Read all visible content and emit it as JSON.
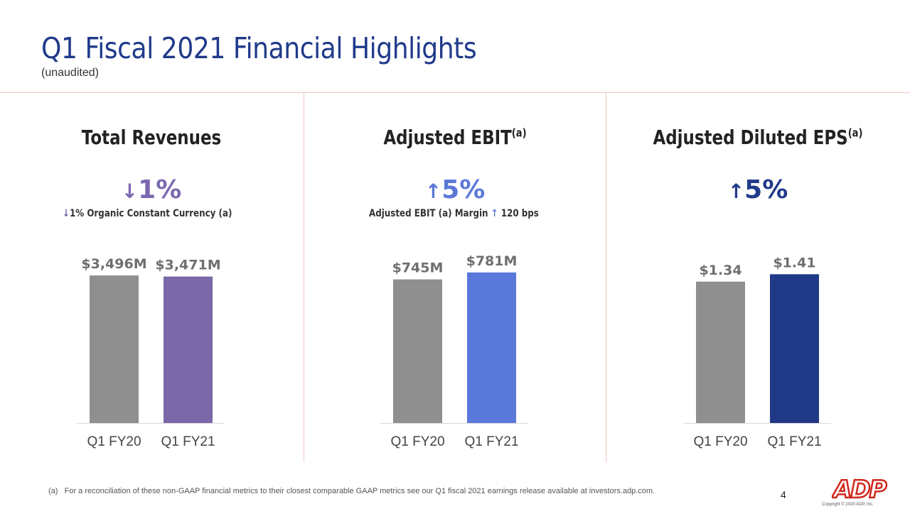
{
  "header": {
    "title": "Q1 Fiscal 2021 Financial Highlights",
    "subtitle": "(unaudited)"
  },
  "panels": [
    {
      "title": "Total Revenues",
      "title_sup": "",
      "growth_arrow": "↓",
      "growth_value": "1%",
      "growth_color": "#7b68b0",
      "note_arrow": "↓",
      "note_text": "1% Organic Constant Currency (a)"
    },
    {
      "title": "Adjusted EBIT",
      "title_sup": "(a)",
      "growth_arrow": "↑",
      "growth_value": "5%",
      "growth_color": "#5b78d8",
      "note_text_before": "Adjusted EBIT (a) Margin",
      "note_arrow": "↑",
      "note_text_after": "120 bps"
    },
    {
      "title": "Adjusted Diluted EPS",
      "title_sup": "(a)",
      "growth_arrow": "↑",
      "growth_value": "5%",
      "growth_color": "#213a8a"
    }
  ],
  "chart_data": [
    {
      "type": "bar",
      "categories": [
        "Q1 FY20",
        "Q1 FY21"
      ],
      "values": [
        3496,
        3471
      ],
      "labels": [
        "$3,496M",
        "$3,471M"
      ],
      "colors": [
        "#8f8f8f",
        "#7a68a8"
      ],
      "ylim": [
        0,
        3700
      ]
    },
    {
      "type": "bar",
      "categories": [
        "Q1 FY20",
        "Q1 FY21"
      ],
      "values": [
        745,
        781
      ],
      "labels": [
        "$745M",
        "$781M"
      ],
      "colors": [
        "#8f8f8f",
        "#5a78da"
      ],
      "ylim": [
        0,
        810
      ]
    },
    {
      "type": "bar",
      "categories": [
        "Q1 FY20",
        "Q1 FY21"
      ],
      "values": [
        1.34,
        1.41
      ],
      "labels": [
        "$1.34",
        "$1.41"
      ],
      "colors": [
        "#8f8f8f",
        "#203a88"
      ],
      "ylim": [
        0,
        1.48
      ]
    }
  ],
  "footer": {
    "footnote_marker": "(a)",
    "footnote_text": "For a reconciliation of these non-GAAP financial metrics to their closest comparable GAAP metrics see our Q1 fiscal 2021 earnings release available at investors.adp.com.",
    "page_number": "4",
    "logo_text": "ADP",
    "logo_color": "#d0271d",
    "copyright": "Copyright © 2020 ADP, Inc."
  }
}
